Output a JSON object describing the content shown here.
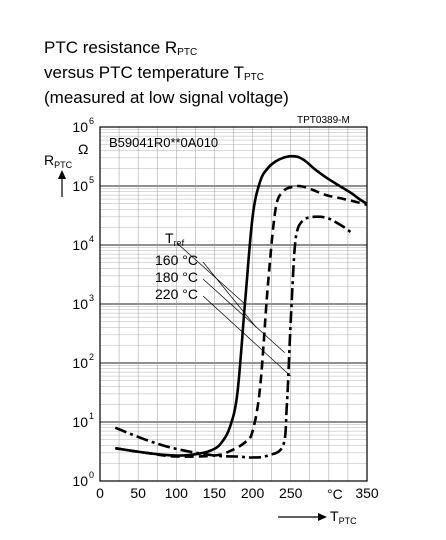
{
  "header": {
    "line1_main": "PTC resistance R",
    "line1_sub": "PTC",
    "line2_main": "versus PTC temperature T",
    "line2_sub": "PTC",
    "line3": "(measured at low signal voltage)"
  },
  "chart_data": {
    "type": "line",
    "figure_code": "TPT0389-M",
    "part_number": "B59041R0**0A010",
    "ylabel_main": "R",
    "ylabel_sub": "PTC",
    "yunit": "Ω",
    "xlabel_main": "T",
    "xlabel_sub": "PTC",
    "xunit": "°C",
    "xlim": [
      0,
      350
    ],
    "ylim": [
      1,
      1000000
    ],
    "yscale": "log",
    "grid": true,
    "x_ticks": [
      "0",
      "50",
      "100",
      "150",
      "200",
      "250",
      "350"
    ],
    "y_ticks": [
      {
        "base": "10",
        "exp": "0"
      },
      {
        "base": "10",
        "exp": "1"
      },
      {
        "base": "10",
        "exp": "2"
      },
      {
        "base": "10",
        "exp": "3"
      },
      {
        "base": "10",
        "exp": "4"
      },
      {
        "base": "10",
        "exp": "5"
      },
      {
        "base": "10",
        "exp": "6"
      }
    ],
    "legend_title_main": "T",
    "legend_title_sub": "ref",
    "series": [
      {
        "name": "160 °C",
        "style": "solid",
        "x": [
          20,
          60,
          100,
          130,
          150,
          160,
          170,
          180,
          190,
          200,
          210,
          220,
          230,
          240,
          250,
          260,
          270,
          280,
          290,
          300,
          320,
          330,
          340,
          350
        ],
        "y": [
          3.6,
          3.0,
          2.7,
          2.9,
          3.5,
          4.6,
          8,
          30,
          1000,
          30000,
          120000,
          200000,
          260000,
          300000,
          320000,
          310000,
          260000,
          200000,
          160000,
          130000,
          90000,
          75000,
          60000,
          50000
        ]
      },
      {
        "name": "180 °C",
        "style": "dashed",
        "x": [
          20,
          60,
          100,
          150,
          170,
          190,
          200,
          210,
          220,
          230,
          240,
          250,
          260,
          270,
          280,
          290,
          300,
          320,
          340,
          350
        ],
        "y": [
          3.6,
          3.0,
          2.6,
          2.7,
          3.2,
          4.5,
          7,
          40,
          2000,
          40000,
          80000,
          95000,
          100000,
          95000,
          85000,
          75000,
          68000,
          60000,
          52000,
          48000
        ]
      },
      {
        "name": "220 °C",
        "style": "dashdot",
        "x": [
          20,
          60,
          100,
          150,
          180,
          200,
          220,
          240,
          245,
          250,
          255,
          260,
          270,
          280,
          290,
          300,
          310,
          320,
          330
        ],
        "y": [
          8,
          5,
          3.5,
          2.7,
          2.6,
          2.5,
          2.7,
          4,
          20,
          500,
          8000,
          20000,
          28000,
          30000,
          30000,
          28000,
          24000,
          20000,
          16000
        ]
      }
    ]
  }
}
